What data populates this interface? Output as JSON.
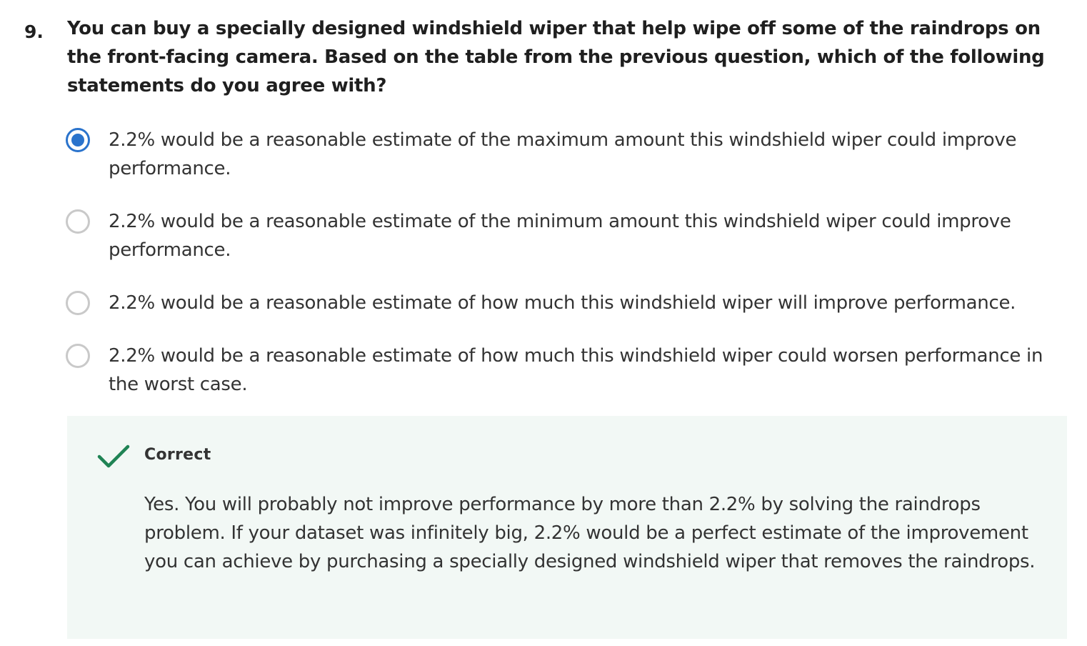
{
  "question": {
    "number": "9.",
    "text": "You can buy a specially designed windshield wiper that help wipe off some of the raindrops on the front-facing camera. Based on the table from the previous question, which of the following statements do you agree with?"
  },
  "options": [
    {
      "label": "2.2% would be a reasonable estimate of the maximum amount this windshield wiper could improve performance.",
      "selected": true
    },
    {
      "label": "2.2% would be a reasonable estimate of the minimum amount this windshield wiper could improve performance.",
      "selected": false
    },
    {
      "label": "2.2% would be a reasonable estimate of how much this windshield wiper will improve performance.",
      "selected": false
    },
    {
      "label": "2.2% would be a reasonable estimate of how much this windshield wiper could worsen performance in the worst case.",
      "selected": false
    }
  ],
  "feedback": {
    "status": "Correct",
    "icon": "checkmark-icon",
    "text": "Yes. You will probably not improve performance by more than 2.2% by solving the raindrops problem. If your dataset was infinitely big, 2.2% would be a perfect estimate of the improvement you can achieve by purchasing a specially designed windshield wiper that removes the raindrops."
  },
  "colors": {
    "accent": "#2a73cc",
    "success": "#1f8354",
    "feedback_bg": "#f2f8f5",
    "radio_border": "#c9c9c9"
  }
}
